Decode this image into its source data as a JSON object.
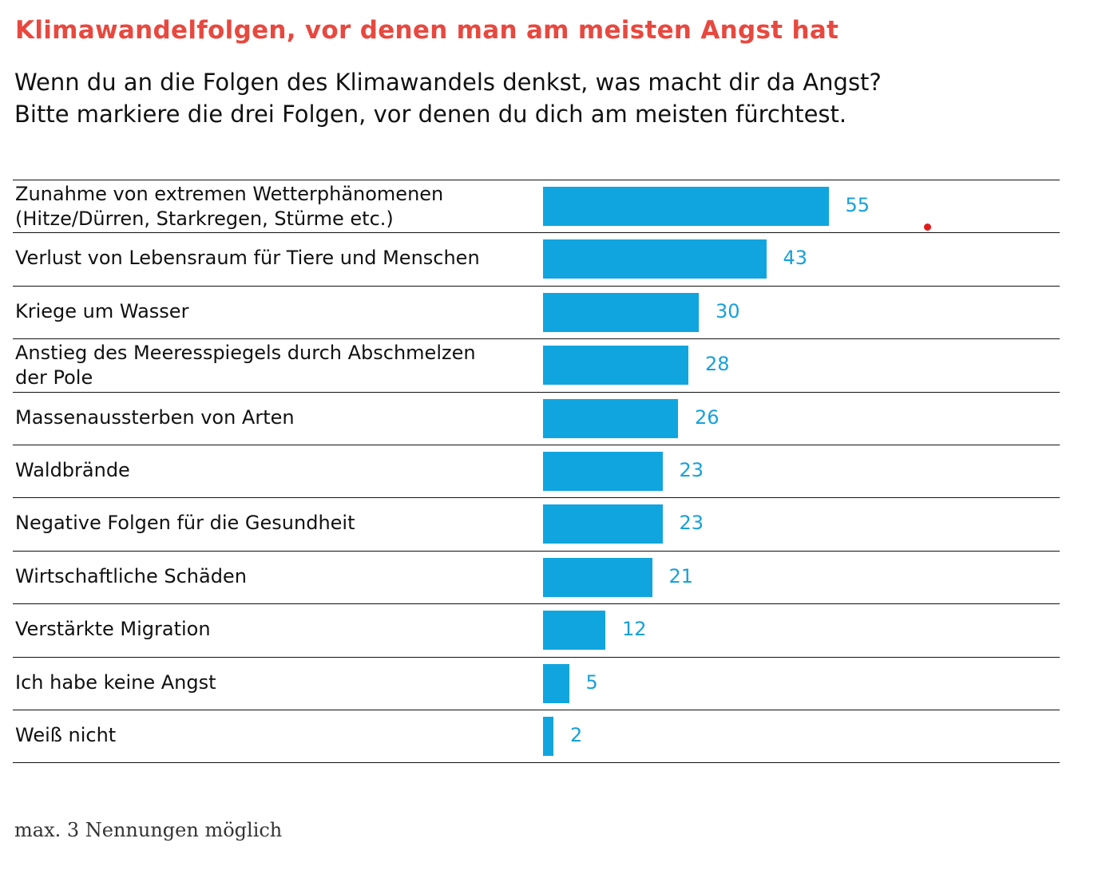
{
  "chart_data": {
    "type": "bar",
    "orientation": "horizontal",
    "title": "Klimawandelfolgen, vor denen man am meisten Angst hat",
    "subtitle": [
      "Wenn du an die Folgen des Klimawandels denkst, was macht dir da Angst?",
      "Bitte markiere die drei Folgen, vor denen du dich am meisten fürchtest."
    ],
    "categories": [
      "Zunahme von extremen Wetterphänomenen\n(Hitze/Dürren, Starkregen, Stürme etc.)",
      "Verlust von Lebensraum für Tiere und Menschen",
      "Kriege um Wasser",
      "Anstieg des Meeresspiegels durch Abschmelzen\nder Pole",
      "Massenaussterben von Arten",
      "Waldbrände",
      "Negative Folgen für die Gesundheit",
      "Wirtschaftliche Schäden",
      "Verstärkte Migration",
      "Ich habe keine Angst",
      "Weiß nicht"
    ],
    "values": [
      55,
      43,
      30,
      28,
      26,
      23,
      23,
      21,
      12,
      5,
      2
    ],
    "xlim": [
      0,
      100
    ],
    "grid": false,
    "data_labels": true,
    "bar_color": "#10a5df",
    "label_color": "#17a0db",
    "title_color": "#e8483f",
    "footnote": "max. 3 Nennungen möglich"
  }
}
